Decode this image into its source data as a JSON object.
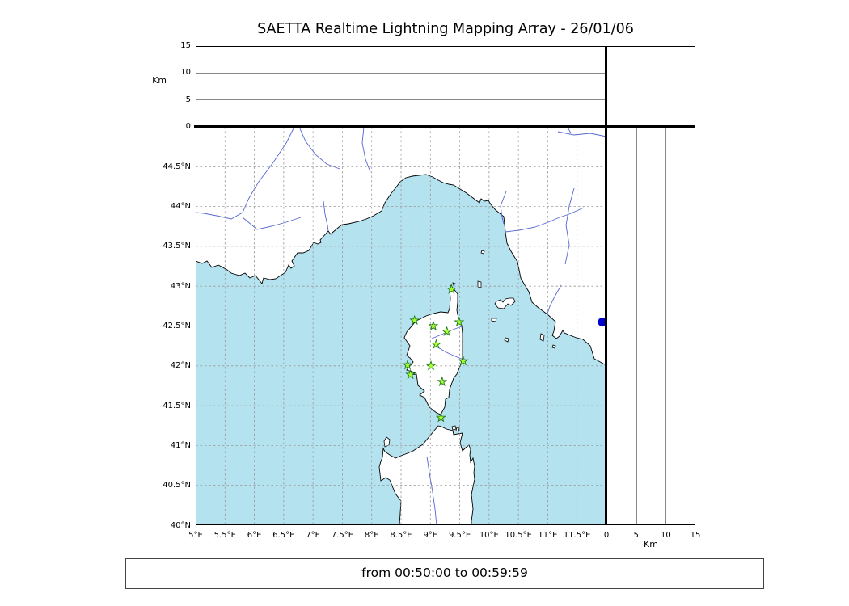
{
  "colors": {
    "sea": "#b5e2ef",
    "land": "#ffffff",
    "coastline": "#000000",
    "river": "#5566d0",
    "grid_map": "#999999",
    "grid_panel": "#888888",
    "station_fill": "#aaff32",
    "station_stroke": "#1f7a1f",
    "blue_point": "#0000cc",
    "border": "#000000"
  },
  "chart_data": {
    "type": "scatter",
    "title": "SAETTA Realtime Lightning Mapping Array - 26/01/06",
    "footer": "from 00:50:00 to 00:59:59",
    "panels": {
      "top": {
        "description": "altitude panel (empty - no lightning sources plotted)",
        "ylabel": "Km",
        "ylim": [
          0,
          15
        ],
        "yticks": [
          {
            "v": 0,
            "label": "0"
          },
          {
            "v": 5,
            "label": "5"
          },
          {
            "v": 10,
            "label": "10"
          },
          {
            "v": 15,
            "label": "15"
          }
        ],
        "gridlines": [
          5,
          10
        ],
        "data_points": []
      },
      "right": {
        "description": "altitude vs latitude panel (empty - no lightning sources plotted)",
        "xlabel": "Km",
        "xlim": [
          0,
          15
        ],
        "xticks": [
          {
            "v": 0,
            "label": "0"
          },
          {
            "v": 5,
            "label": "5"
          },
          {
            "v": 10,
            "label": "10"
          },
          {
            "v": 15,
            "label": "15"
          }
        ],
        "gridlines": [
          5,
          10
        ],
        "data_points": []
      },
      "map": {
        "description": "plan view map of Corsica region with SAETTA sensor stations (green stars)",
        "xlim": [
          5,
          12
        ],
        "ylim": [
          40,
          45
        ],
        "grid": true,
        "xticks": [
          {
            "v": 5,
            "label": "5°E"
          },
          {
            "v": 5.5,
            "label": "5.5°E"
          },
          {
            "v": 6,
            "label": "6°E"
          },
          {
            "v": 6.5,
            "label": "6.5°E"
          },
          {
            "v": 7,
            "label": "7°E"
          },
          {
            "v": 7.5,
            "label": "7.5°E"
          },
          {
            "v": 8,
            "label": "8°E"
          },
          {
            "v": 8.5,
            "label": "8.5°E"
          },
          {
            "v": 9,
            "label": "9°E"
          },
          {
            "v": 9.5,
            "label": "9.5°E"
          },
          {
            "v": 10,
            "label": "10°E"
          },
          {
            "v": 10.5,
            "label": "10.5°E"
          },
          {
            "v": 11,
            "label": "11°E"
          },
          {
            "v": 11.5,
            "label": "11.5°E"
          }
        ],
        "yticks": [
          {
            "v": 40,
            "label": "40°N"
          },
          {
            "v": 40.5,
            "label": "40.5°N"
          },
          {
            "v": 41,
            "label": "41°N"
          },
          {
            "v": 41.5,
            "label": "41.5°N"
          },
          {
            "v": 42,
            "label": "42°N"
          },
          {
            "v": 42.5,
            "label": "42.5°N"
          },
          {
            "v": 43,
            "label": "43°N"
          },
          {
            "v": 43.5,
            "label": "43.5°N"
          },
          {
            "v": 44,
            "label": "44°N"
          },
          {
            "v": 44.5,
            "label": "44.5°N"
          }
        ],
        "station_marker": "star",
        "stations": [
          [
            9.36,
            42.96
          ],
          [
            8.73,
            42.57
          ],
          [
            9.05,
            42.5
          ],
          [
            9.28,
            42.43
          ],
          [
            9.49,
            42.55
          ],
          [
            9.1,
            42.27
          ],
          [
            9.01,
            42.0
          ],
          [
            9.56,
            42.06
          ],
          [
            8.61,
            42.01
          ],
          [
            8.66,
            41.89
          ],
          [
            9.2,
            41.8
          ],
          [
            9.18,
            41.35
          ]
        ],
        "blue_point": {
          "lon": 11.93,
          "lat": 42.55
        }
      }
    }
  }
}
